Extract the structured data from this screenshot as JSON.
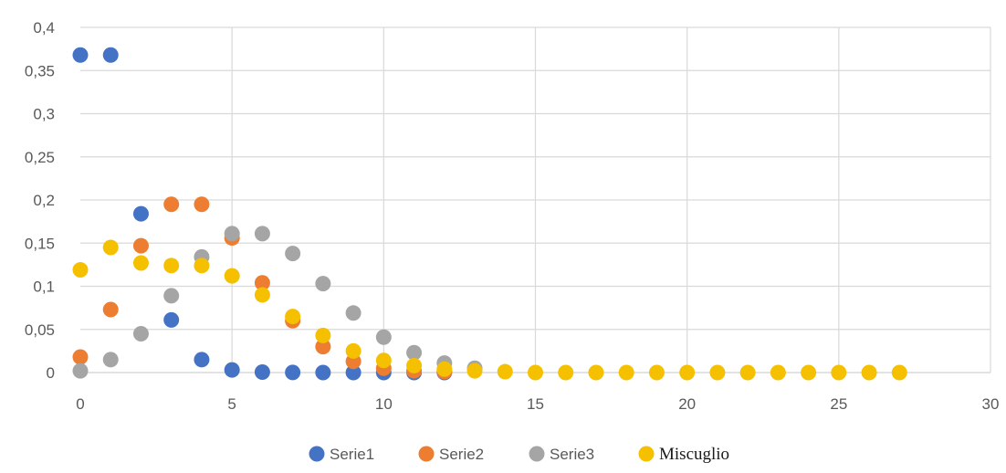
{
  "chart_data": {
    "type": "scatter",
    "title": "",
    "xlabel": "",
    "ylabel": "",
    "xlim": [
      0,
      30
    ],
    "ylim": [
      0,
      0.4
    ],
    "x_ticks": [
      "0",
      "5",
      "10",
      "15",
      "20",
      "25",
      "30"
    ],
    "y_ticks": [
      "0",
      "0,05",
      "0,1",
      "0,15",
      "0,2",
      "0,25",
      "0,3",
      "0,35",
      "0,4"
    ],
    "grid": true,
    "legend_position": "bottom",
    "series": [
      {
        "name": "Serie1",
        "color": "#4472C4",
        "x": [
          0,
          1,
          2,
          3,
          4,
          5,
          6,
          7,
          8,
          9,
          10,
          11,
          12
        ],
        "y": [
          0.368,
          0.368,
          0.184,
          0.061,
          0.015,
          0.003,
          0.0005,
          0.0001,
          0.0,
          0.0,
          0.0,
          0.0,
          0.0
        ]
      },
      {
        "name": "Serie2",
        "color": "#ED7D31",
        "x": [
          0,
          1,
          2,
          3,
          4,
          5,
          6,
          7,
          8,
          9,
          10,
          11,
          12
        ],
        "y": [
          0.018,
          0.073,
          0.147,
          0.195,
          0.195,
          0.156,
          0.104,
          0.06,
          0.03,
          0.013,
          0.005,
          0.002,
          0.001
        ]
      },
      {
        "name": "Serie3",
        "color": "#A5A5A5",
        "x": [
          0,
          1,
          2,
          3,
          4,
          5,
          6,
          7,
          8,
          9,
          10,
          11,
          12,
          13
        ],
        "y": [
          0.002,
          0.015,
          0.045,
          0.089,
          0.134,
          0.161,
          0.161,
          0.138,
          0.103,
          0.069,
          0.041,
          0.023,
          0.011,
          0.005
        ]
      },
      {
        "name": "Miscuglio",
        "color": "#F5C000",
        "x": [
          0,
          1,
          2,
          3,
          4,
          5,
          6,
          7,
          8,
          9,
          10,
          11,
          12,
          13,
          14,
          15,
          16,
          17,
          18,
          19,
          20,
          21,
          22,
          23,
          24,
          25,
          26,
          27
        ],
        "y": [
          0.119,
          0.145,
          0.127,
          0.124,
          0.124,
          0.112,
          0.09,
          0.065,
          0.043,
          0.025,
          0.014,
          0.008,
          0.004,
          0.002,
          0.001,
          0,
          0,
          0,
          0,
          0,
          0,
          0,
          0,
          0,
          0,
          0,
          0,
          0
        ]
      }
    ]
  }
}
